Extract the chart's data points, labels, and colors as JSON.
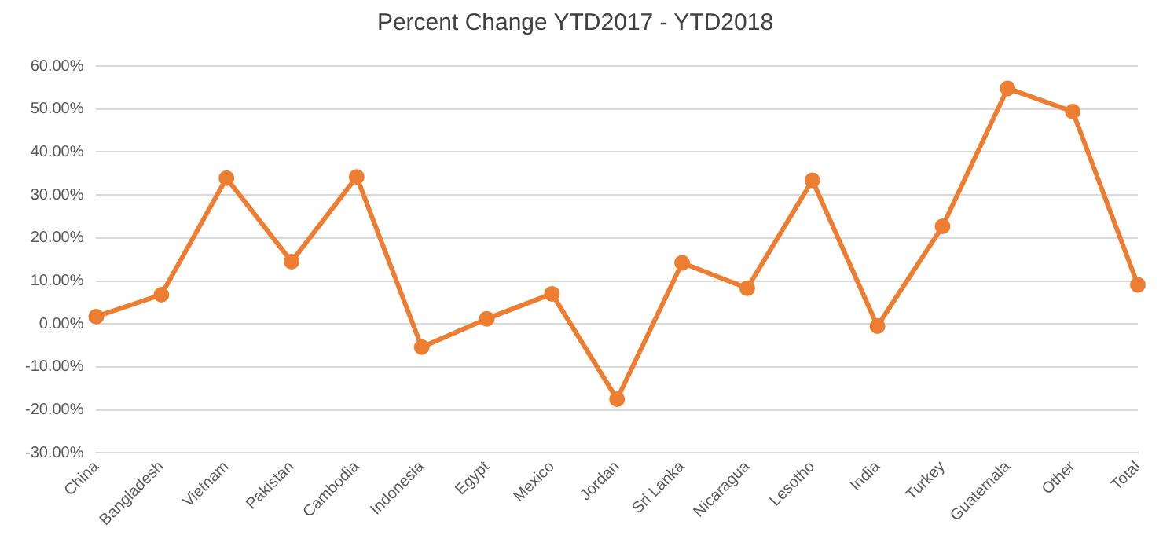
{
  "chart_data": {
    "type": "line",
    "title": "Percent Change YTD2017 - YTD2018",
    "categories": [
      "China",
      "Bangladesh",
      "Vietnam",
      "Pakistan",
      "Cambodia",
      "Indonesia",
      "Egypt",
      "Mexico",
      "Jordan",
      "Sri Lanka",
      "Nicaragua",
      "Lesotho",
      "India",
      "Turkey",
      "Guatemala",
      "Other",
      "Total"
    ],
    "series": [
      {
        "color": "#ed7d31",
        "values": [
          1.7,
          6.8,
          33.9,
          14.5,
          34.2,
          -5.4,
          1.2,
          7.0,
          -17.5,
          14.2,
          8.3,
          33.4,
          -0.5,
          22.7,
          54.8,
          49.4,
          9.1
        ]
      }
    ],
    "ylim": [
      -30,
      60
    ],
    "yticks": [
      {
        "value": -30,
        "label": "-30.00%"
      },
      {
        "value": -20,
        "label": "-20.00%"
      },
      {
        "value": -10,
        "label": "-10.00%"
      },
      {
        "value": 0,
        "label": "0.00%"
      },
      {
        "value": 10,
        "label": "10.00%"
      },
      {
        "value": 20,
        "label": "20.00%"
      },
      {
        "value": 30,
        "label": "30.00%"
      },
      {
        "value": 40,
        "label": "40.00%"
      },
      {
        "value": 50,
        "label": "50.00%"
      },
      {
        "value": 60,
        "label": "60.00%"
      }
    ],
    "grid": "y",
    "legend": false,
    "marker": "circle",
    "line_style": "solid"
  }
}
